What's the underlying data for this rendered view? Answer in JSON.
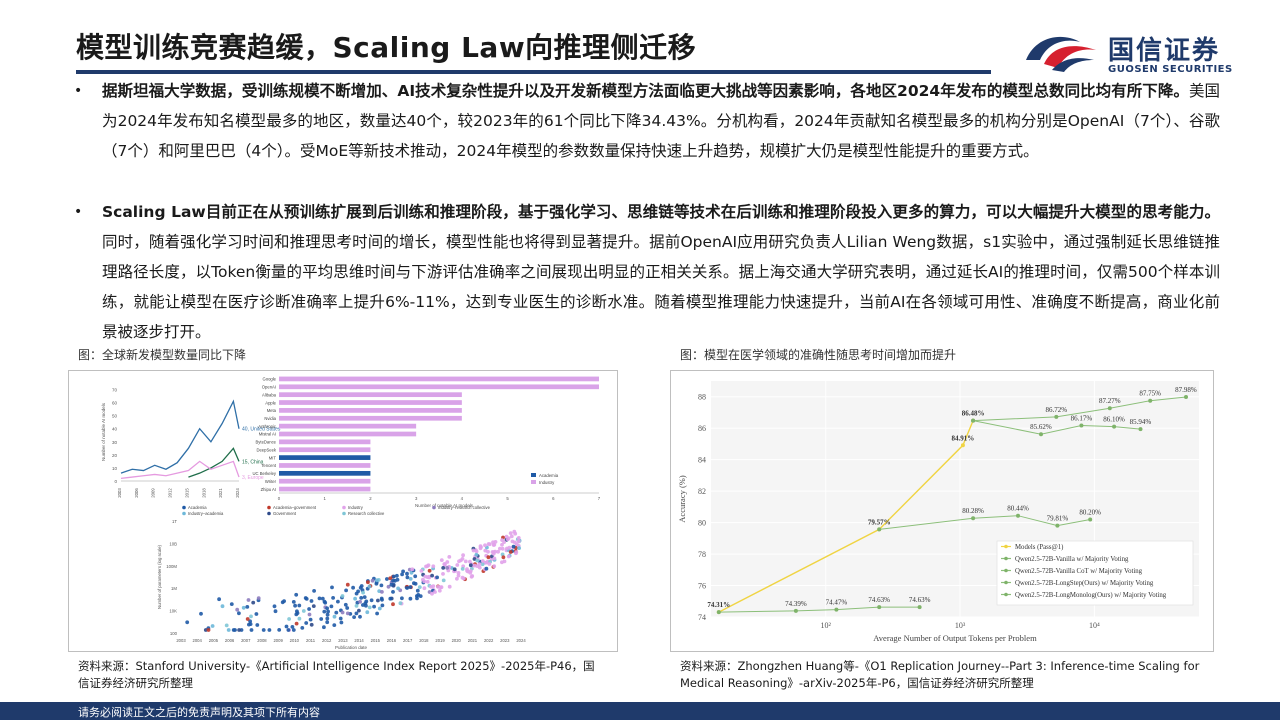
{
  "page": {
    "title": "模型训练竞赛趋缓，Scaling Law向推理侧迁移",
    "logo": {
      "cn": "国信证券",
      "en": "GUOSEN SECURITIES"
    },
    "bullet": "•",
    "para1": {
      "bold": "据斯坦福大学数据，受训练规模不断增加、AI技术复杂性提升以及开发新模型方法面临更大挑战等因素影响，各地区2024年发布的模型总数同比均有所下降。",
      "normal": "美国为2024年发布知名模型最多的地区，数量达40个，较2023年的61个同比下降34.43%。分机构看，2024年贡献知名模型最多的机构分别是OpenAI（7个）、谷歌（7个）和阿里巴巴（4个）。受MoE等新技术推动，2024年模型的参数数量保持快速上升趋势，规模扩大仍是模型性能提升的重要方式。"
    },
    "para2": {
      "bold": "Scaling Law目前正在从预训练扩展到后训练和推理阶段，基于强化学习、思维链等技术在后训练和推理阶段投入更多的算力，可以大幅提升大模型的思考能力。",
      "normal": "同时，随着强化学习时间和推理思考时间的增长，模型性能也将得到显著提升。据前OpenAI应用研究负责人Lilian Weng数据，s1实验中，通过强制延长思维链推理路径长度，以Token衡量的平均思维时间与下游评估准确率之间展现出明显的正相关关系。据上海交通大学研究表明，通过延长AI的推理时间，仅需500个样本训练，就能让模型在医疗诊断准确率上提升6%-11%，达到专业医生的诊断水准。随着模型推理能力快速提升，当前AI在各领域可用性、准确度不断提高，商业化前景被逐步打开。"
    },
    "fig1_title": "图：全球新发模型数量同比下降",
    "fig2_title": "图：模型在医学领域的准确性随思考时间增加而提升",
    "source1": "资料来源：Stanford University-《Artificial Intelligence Index Report 2025》-2025年-P46，国信证券经济研究所整理",
    "source2": "资料来源：Zhongzhen Huang等-《O1 Replication Journey--Part 3: Inference-time Scaling for Medical Reasoning》-arXiv-2025年-P6，国信证券经济研究所整理",
    "footer": "请务必阅读正文之后的免责声明及其项下所有内容"
  },
  "chart_data": [
    {
      "type": "line",
      "ylabel": "Number of notable AI models",
      "x": [
        2003,
        2005,
        2007,
        2009,
        2011,
        2013,
        2015,
        2017,
        2019,
        2021,
        2023,
        2024
      ],
      "xtick_labels": [
        "2003",
        "2006",
        "2009",
        "2012",
        "2015",
        "2018",
        "2021",
        "2024"
      ],
      "yticks": [
        0,
        10,
        20,
        30,
        40,
        50,
        60,
        70
      ],
      "ylim": [
        0,
        75
      ],
      "series": [
        {
          "name": "United States",
          "color": "#2f6fa7",
          "values": [
            6,
            9,
            8,
            12,
            9,
            14,
            25,
            40,
            30,
            44,
            61,
            40
          ]
        },
        {
          "name": "China",
          "color": "#1f6e4a",
          "values": [
            null,
            null,
            null,
            null,
            null,
            null,
            3,
            6,
            10,
            15,
            25,
            15
          ]
        },
        {
          "name": "Europe",
          "color": "#e59ae0",
          "values": [
            2,
            3,
            4,
            5,
            4,
            6,
            8,
            15,
            9,
            12,
            15,
            3
          ]
        }
      ],
      "end_labels": [
        "40, United States",
        "15, China",
        "3, Europe"
      ]
    },
    {
      "type": "bar",
      "orientation": "horizontal",
      "xlabel": "Number of notable AI models",
      "categories": [
        "Google",
        "OpenAI",
        "Alibaba",
        "Apple",
        "Meta",
        "Nvidia",
        "Anthropic",
        "Mistral AI",
        "ByteDance",
        "DeepSeek",
        "MIT",
        "Tencent",
        "UC Berkeley",
        "Writer",
        "Zhipu AI"
      ],
      "values": [
        7,
        7,
        4,
        4,
        4,
        4,
        3,
        3,
        2,
        2,
        2,
        2,
        2,
        2,
        2
      ],
      "sector": [
        "Industry",
        "Industry",
        "Industry",
        "Industry",
        "Industry",
        "Industry",
        "Industry",
        "Industry",
        "Industry",
        "Industry",
        "Academia",
        "Industry",
        "Academia",
        "Industry",
        "Industry"
      ],
      "xticks": [
        0,
        1,
        2,
        3,
        4,
        5,
        6,
        7
      ],
      "legend": [
        "Academia",
        "Industry"
      ],
      "colors": {
        "Academia": "#1f5aa6",
        "Industry": "#d9a3e8"
      }
    },
    {
      "type": "scatter",
      "xlabel": "Publication date",
      "ylabel": "Number of parameters (log scale)",
      "log_y": true,
      "xtick_labels": [
        "2003",
        "2004",
        "2005",
        "2006",
        "2007",
        "2008",
        "2009",
        "2010",
        "2011",
        "2012",
        "2013",
        "2014",
        "2015",
        "2016",
        "2017",
        "2018",
        "2019",
        "2020",
        "2021",
        "2022",
        "2023",
        "2024"
      ],
      "ytick_labels": [
        "100",
        "10K",
        "1M",
        "100M",
        "10B",
        "1T"
      ],
      "legend": [
        "Academia",
        "Academia–government",
        "Industry",
        "Industry–research collective",
        "Industry–academia",
        "Government",
        "Research collective"
      ],
      "colors": {
        "Academia": "#1f5aa6",
        "Academia–government": "#c0392b",
        "Industry": "#e1a3ea",
        "Industry–research collective": "#8e7dbf",
        "Industry–academia": "#6db8d9",
        "Government": "#2e4a8a",
        "Research collective": "#7fc6d6"
      }
    },
    {
      "type": "line",
      "xlabel": "Average Number of Output Tokens per Problem",
      "ylabel": "Accuracy (%)",
      "log_x": true,
      "xtick_labels": [
        "10²",
        "10³",
        "10⁴"
      ],
      "yticks": [
        74,
        76,
        78,
        80,
        82,
        84,
        86,
        88
      ],
      "ylim": [
        74,
        89
      ],
      "series": [
        {
          "name": "Models (Pass@1)",
          "color": "#f0d443",
          "x": [
            16,
            250,
            1050,
            1250
          ],
          "values": [
            74.31,
            79.57,
            84.91,
            86.48
          ]
        },
        {
          "name": "Qwen2.5-72B-Vanilla w/ Majority Voting",
          "color": "#8cbf7a",
          "x": [
            16,
            60,
            120,
            250,
            500
          ],
          "values": [
            74.31,
            74.39,
            74.47,
            74.63,
            74.63
          ]
        },
        {
          "name": "Qwen2.5-72B-Vanilla CoT w/ Majority Voting",
          "color": "#8cbf7a",
          "x": [
            250,
            1250,
            2700,
            5300,
            9300
          ],
          "values": [
            79.57,
            80.28,
            80.44,
            79.81,
            80.2
          ]
        },
        {
          "name": "Qwen2.5-72B-LongStep(Ours) w/ Majority Voting",
          "color": "#8cbf7a",
          "x": [
            1250,
            4000,
            8000,
            14000,
            22000
          ],
          "values": [
            86.48,
            85.62,
            86.17,
            86.1,
            85.94
          ]
        },
        {
          "name": "Qwen2.5-72B-LongMonolog(Ours) w/ Majority Voting",
          "color": "#8cbf7a",
          "x": [
            1250,
            5200,
            13000,
            26000,
            48000
          ],
          "values": [
            86.48,
            86.72,
            87.27,
            87.75,
            87.98
          ]
        }
      ],
      "point_labels": [
        {
          "text": "74.31%",
          "x": 16,
          "y": 74.31,
          "bold": true
        },
        {
          "text": "74.39%",
          "x": 60,
          "y": 74.39
        },
        {
          "text": "74.47%",
          "x": 120,
          "y": 74.47
        },
        {
          "text": "74.63%",
          "x": 250,
          "y": 74.63
        },
        {
          "text": "74.63%",
          "x": 500,
          "y": 74.63
        },
        {
          "text": "79.57%",
          "x": 250,
          "y": 79.57,
          "bold": true
        },
        {
          "text": "80.28%",
          "x": 1250,
          "y": 80.28
        },
        {
          "text": "80.44%",
          "x": 2700,
          "y": 80.44
        },
        {
          "text": "79.81%",
          "x": 5300,
          "y": 79.81
        },
        {
          "text": "80.20%",
          "x": 9300,
          "y": 80.2
        },
        {
          "text": "84.91%",
          "x": 1050,
          "y": 84.91,
          "bold": true
        },
        {
          "text": "86.48%",
          "x": 1250,
          "y": 86.48,
          "bold": true
        },
        {
          "text": "85.62%",
          "x": 4000,
          "y": 85.62
        },
        {
          "text": "86.17%",
          "x": 8000,
          "y": 86.17
        },
        {
          "text": "86.10%",
          "x": 14000,
          "y": 86.1
        },
        {
          "text": "85.94%",
          "x": 22000,
          "y": 85.94
        },
        {
          "text": "86.72%",
          "x": 5200,
          "y": 86.72
        },
        {
          "text": "87.27%",
          "x": 13000,
          "y": 87.27
        },
        {
          "text": "87.75%",
          "x": 26000,
          "y": 87.75
        },
        {
          "text": "87.98%",
          "x": 48000,
          "y": 87.98
        }
      ]
    }
  ]
}
